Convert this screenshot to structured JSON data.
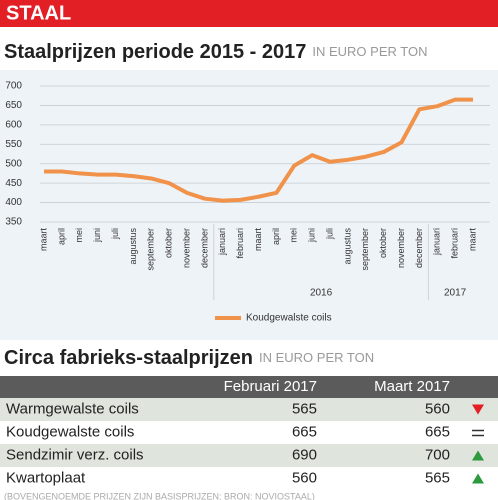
{
  "header": {
    "title": "STAAL"
  },
  "chart_data": {
    "type": "line",
    "title": "Staalprijzen periode 2015 - 2017",
    "subtitle": "IN EURO PER TON",
    "category_groups": [
      {
        "label": null,
        "categories": [
          "maart",
          "april",
          "mei",
          "juni",
          "juli",
          "augustus",
          "september",
          "oktober",
          "november",
          "december"
        ]
      },
      {
        "label": "2016",
        "categories": [
          "januari",
          "februari",
          "maart",
          "april",
          "mei",
          "juni",
          "juli",
          "augustus",
          "september",
          "oktober",
          "november",
          "december"
        ]
      },
      {
        "label": "2017",
        "categories": [
          "januari",
          "februari",
          "maart"
        ]
      }
    ],
    "series": [
      {
        "name": "Koudgewalste coils",
        "color": "#f0924a",
        "values": [
          480,
          480,
          475,
          472,
          472,
          468,
          462,
          450,
          425,
          410,
          405,
          407,
          415,
          425,
          495,
          522,
          505,
          510,
          518,
          530,
          555,
          640,
          648,
          665,
          665
        ]
      }
    ],
    "ylim": [
      350,
      700
    ],
    "yticks": [
      350,
      400,
      450,
      500,
      550,
      600,
      650,
      700
    ],
    "grid": true,
    "legend": "bottom"
  },
  "table": {
    "title": "Circa fabrieks-staalprijzen",
    "subtitle": "IN EURO PER TON",
    "columns": [
      "Februari 2017",
      "Maart 2017"
    ],
    "rows": [
      {
        "label": "Warmgewalste coils",
        "values": [
          565,
          560
        ],
        "trend": "down"
      },
      {
        "label": "Koudgewalste coils",
        "values": [
          665,
          665
        ],
        "trend": "same"
      },
      {
        "label": "Sendzimir verz. coils",
        "values": [
          690,
          700
        ],
        "trend": "up"
      },
      {
        "label": "Kwartoplaat",
        "values": [
          560,
          565
        ],
        "trend": "up"
      }
    ],
    "note": "(BOVENGENOEMDE PRIJZEN ZIJN BASISPRIJZEN; BRON: NOVIOSTAAL)"
  }
}
